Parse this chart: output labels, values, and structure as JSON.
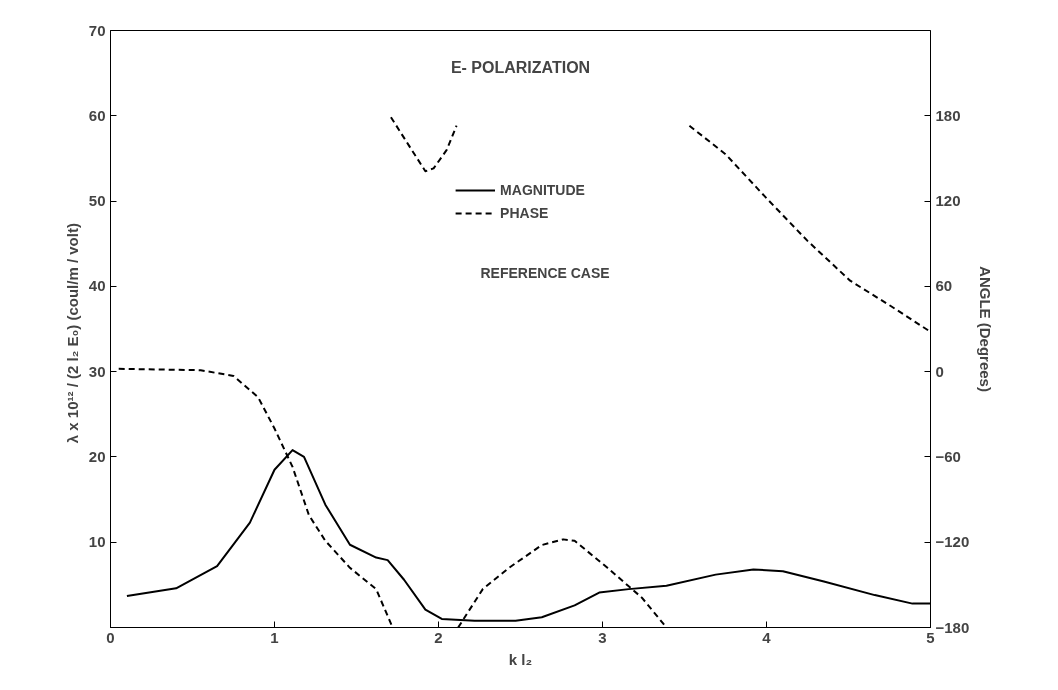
{
  "chart_data": {
    "type": "line",
    "title": "E- POLARIZATION",
    "xlabel": "k l₂",
    "ylabel": "λ x 10¹² / (2 l₂ E₀)   (coul/m / volt)",
    "y2label": "ANGLE (Degrees)",
    "xlim": [
      0,
      5
    ],
    "xticks": [
      0,
      1,
      2,
      3,
      4,
      5
    ],
    "ylim": [
      0,
      70
    ],
    "yticks": [
      10,
      20,
      30,
      40,
      50,
      60,
      70
    ],
    "y2lim": [
      -180,
      240
    ],
    "y2ticks": [
      -180,
      -120,
      -60,
      0,
      60,
      120,
      180
    ],
    "grid": false,
    "legend": "top",
    "marker": "none",
    "annotations": [
      "REFERENCE CASE"
    ],
    "series": [
      {
        "name": "MAGNITUDE",
        "color": "#000000",
        "line_style": "solid",
        "x": [
          0.1,
          0.4,
          0.65,
          0.85,
          1.0,
          1.11,
          1.18,
          1.31,
          1.46,
          1.62,
          1.69,
          1.79,
          1.92,
          2.02,
          2.22,
          2.47,
          2.63,
          2.83,
          2.98,
          3.16,
          3.39,
          3.69,
          3.92,
          4.1,
          4.35,
          4.66,
          4.89,
          5.0
        ],
        "values": [
          3.7,
          4.6,
          7.2,
          12.3,
          18.5,
          20.8,
          20.0,
          14.4,
          9.7,
          8.2,
          7.9,
          5.6,
          2.1,
          1.0,
          0.8,
          0.8,
          1.2,
          2.6,
          4.1,
          4.5,
          4.9,
          6.2,
          6.8,
          6.6,
          5.4,
          3.8,
          2.8,
          2.8
        ]
      },
      {
        "name": "PHASE",
        "color": "#000000",
        "line_style": "dashed",
        "axis": "y2",
        "x": [
          0.05,
          0.55,
          0.75,
          0.9,
          1.0,
          1.11,
          1.21,
          1.31,
          1.46,
          1.62,
          1.72,
          1.715,
          1.71,
          1.82,
          1.92,
          1.97,
          2.05,
          2.11,
          2.115,
          2.12,
          2.27,
          2.43,
          2.63,
          2.76,
          2.83,
          3.03,
          3.24,
          3.39,
          3.46,
          3.53,
          3.75,
          4.0,
          4.25,
          4.51,
          4.76,
          5.0
        ],
        "values": [
          2,
          1,
          -3,
          -18,
          -40,
          -67,
          -101,
          -119,
          -138,
          -153,
          -180,
          null,
          179,
          159,
          141,
          143,
          156,
          173,
          null,
          -180,
          -153,
          -138,
          -122,
          -118,
          -119,
          -138,
          -159,
          -180,
          null,
          173,
          153,
          122,
          92,
          64,
          46,
          28
        ]
      }
    ]
  }
}
